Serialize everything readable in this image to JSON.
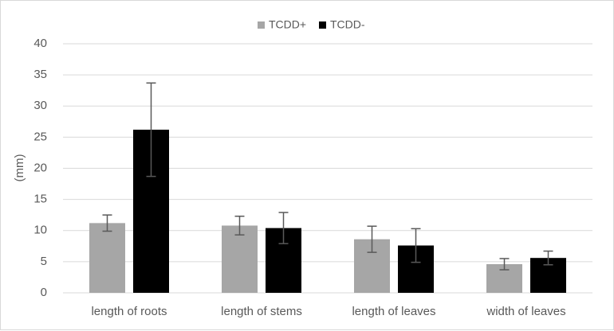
{
  "chart_data": {
    "type": "bar",
    "categories": [
      "length of roots",
      "length of stems",
      "length of leaves",
      "width of leaves"
    ],
    "series": [
      {
        "name": "TCDD+",
        "color": "#a6a6a6",
        "values": [
          11.2,
          10.8,
          8.6,
          4.6
        ],
        "error": [
          1.3,
          1.5,
          2.1,
          0.9
        ]
      },
      {
        "name": "TCDD-",
        "color": "#000000",
        "values": [
          26.2,
          10.4,
          7.6,
          5.6
        ],
        "error": [
          7.5,
          2.5,
          2.7,
          1.1
        ]
      }
    ],
    "xlabel": "",
    "ylabel": "(mm)",
    "ylim": [
      0,
      40
    ],
    "yticks": [
      "0",
      "5",
      "10",
      "15",
      "20",
      "25",
      "30",
      "35",
      "40"
    ],
    "grid": true,
    "legend": "top-center",
    "error_bar_color": "#595959",
    "grid_color": "#d9d9d9"
  }
}
